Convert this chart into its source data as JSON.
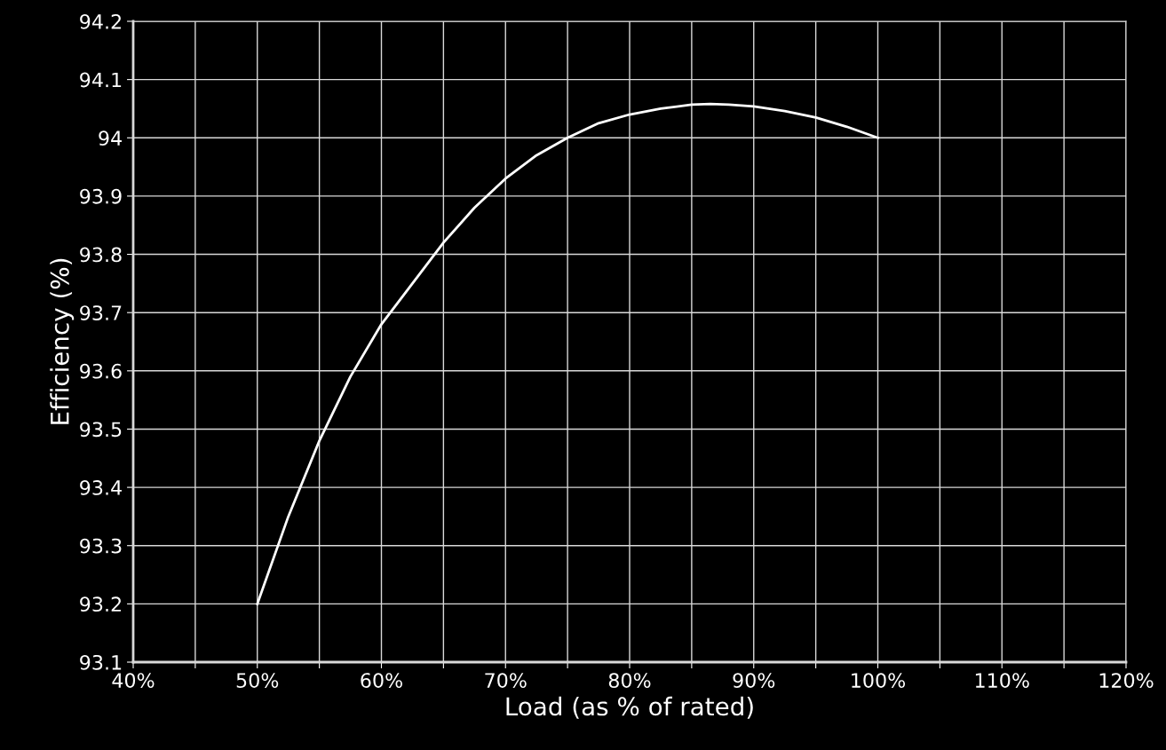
{
  "chart_data": {
    "type": "line",
    "xlabel": "Load (as % of rated)",
    "ylabel": "Efficiency (%)",
    "x": [
      50,
      52.5,
      55,
      57.5,
      60,
      62.5,
      65,
      67.5,
      70,
      72.5,
      75,
      77.5,
      80,
      82.5,
      85,
      86.5,
      88,
      90,
      92.5,
      95,
      97.5,
      100
    ],
    "series": [
      {
        "color": "#ffffff",
        "values": [
          93.2,
          93.35,
          93.48,
          93.59,
          93.68,
          93.75,
          93.82,
          93.88,
          93.93,
          93.97,
          94.0,
          94.025,
          94.04,
          94.05,
          94.057,
          94.058,
          94.057,
          94.054,
          94.046,
          94.035,
          94.019,
          94.0
        ]
      }
    ],
    "xlim": [
      40,
      120
    ],
    "xticks": [
      {
        "value": 40,
        "label": "40%"
      },
      {
        "value": 45,
        "label": null
      },
      {
        "value": 50,
        "label": "50%"
      },
      {
        "value": 55,
        "label": null
      },
      {
        "value": 60,
        "label": "60%"
      },
      {
        "value": 65,
        "label": null
      },
      {
        "value": 70,
        "label": "70%"
      },
      {
        "value": 75,
        "label": null
      },
      {
        "value": 80,
        "label": "80%"
      },
      {
        "value": 85,
        "label": null
      },
      {
        "value": 90,
        "label": "90%"
      },
      {
        "value": 95,
        "label": null
      },
      {
        "value": 100,
        "label": "100%"
      },
      {
        "value": 105,
        "label": null
      },
      {
        "value": 110,
        "label": "110%"
      },
      {
        "value": 115,
        "label": null
      },
      {
        "value": 120,
        "label": "120%"
      }
    ],
    "ylim": [
      93.1,
      94.2
    ],
    "yticks": [
      93.1,
      93.2,
      93.3,
      93.4,
      93.5,
      93.6,
      93.7,
      93.8,
      93.9,
      94,
      94.1,
      94.2
    ],
    "grid": true,
    "line_style": "solid",
    "marker": "none"
  }
}
